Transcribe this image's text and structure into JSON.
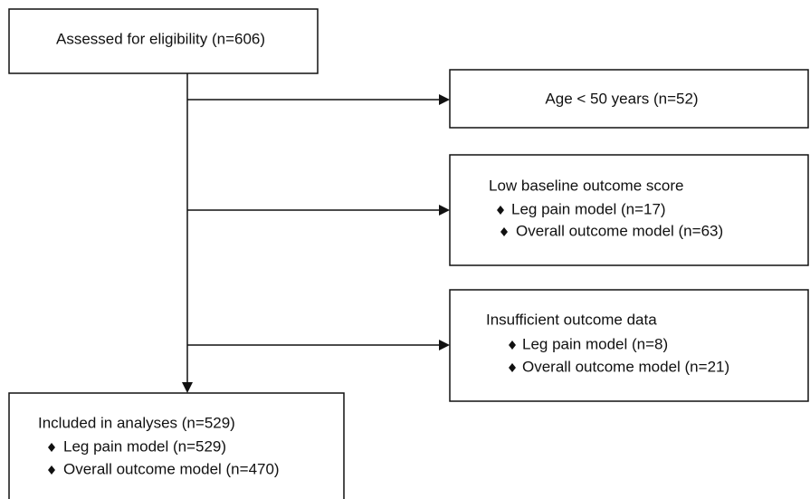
{
  "nodes": [
    {
      "label": "Assessed for eligibility (n=606)"
    },
    {
      "label": "Age < 50 years (n=52)"
    },
    {
      "label": "Low baseline outcome score",
      "items": [
        "Leg pain model (n=17)",
        "Overall outcome model (n=63)"
      ]
    },
    {
      "label": "Insufficient outcome data",
      "items": [
        "Leg pain model (n=8)",
        "Overall outcome model (n=21)"
      ]
    },
    {
      "label": "Included in analyses (n=529)",
      "items": [
        "Leg pain model (n=529)",
        "Overall outcome model (n=470)"
      ]
    }
  ]
}
